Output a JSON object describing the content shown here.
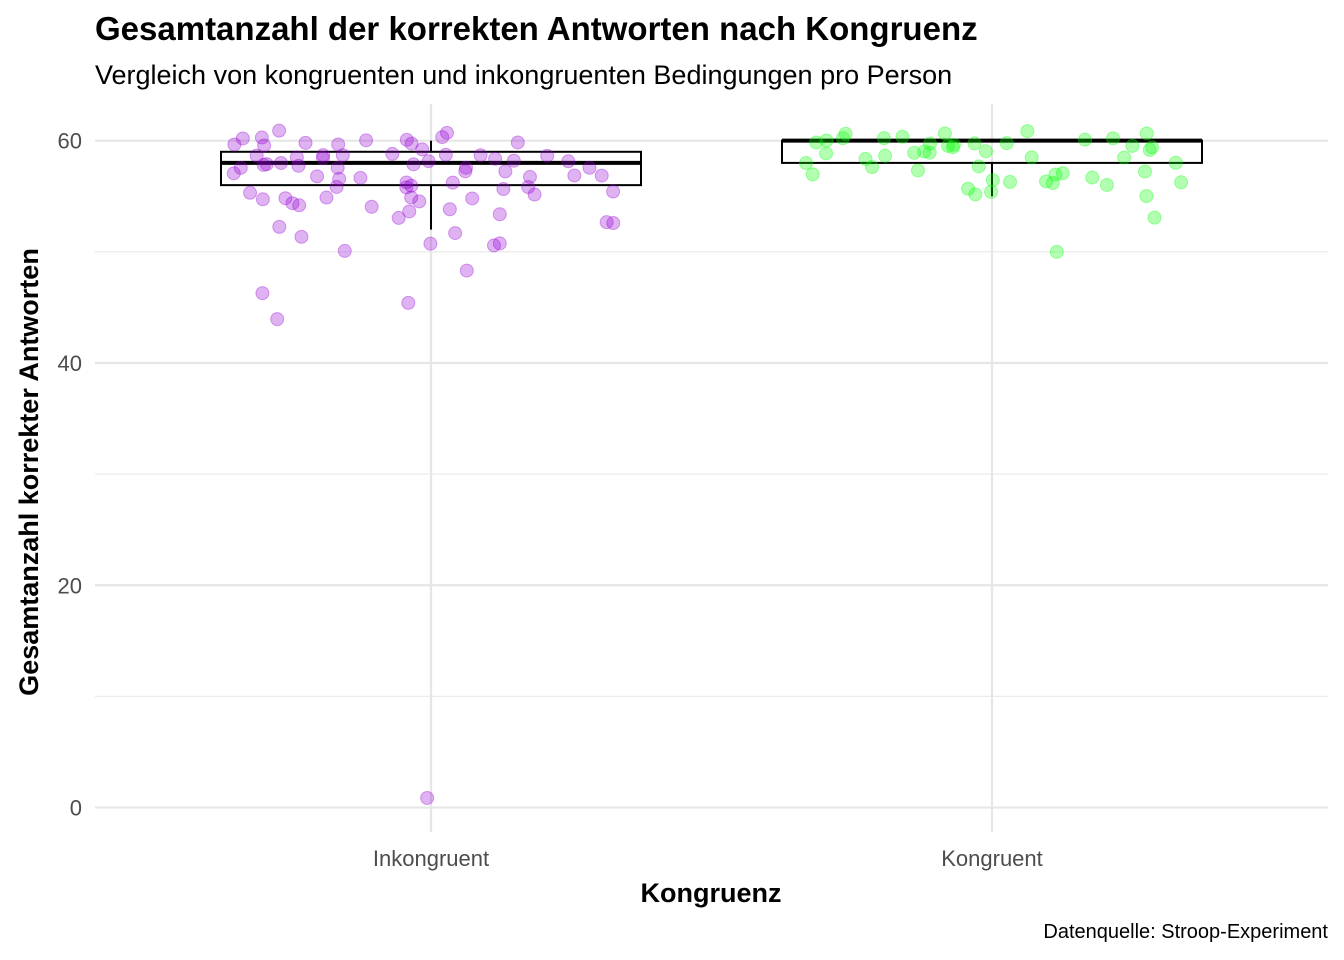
{
  "chart_data": {
    "type": "box+jitter",
    "title": "Gesamtanzahl der korrekten Antworten nach Kongruenz",
    "subtitle": "Vergleich von kongruenten und inkongruenten Bedingungen pro Person",
    "caption": "Datenquelle: Stroop-Experiment",
    "xlabel": "Kongruenz",
    "ylabel": "Gesamtanzahl korrekter Antworten",
    "categories": [
      "Inkongruent",
      "Kongruent"
    ],
    "ylim": [
      -2.2,
      63.3
    ],
    "yticks": [
      0,
      20,
      40,
      60
    ],
    "grid": true,
    "colors": {
      "Inkongruent": "#9400D3",
      "Kongruent": "#00FF00"
    },
    "boxes": [
      {
        "category": "Inkongruent",
        "q1": 56,
        "median": 58,
        "q3": 59,
        "whisker_low": 52,
        "whisker_high": 60
      },
      {
        "category": "Kongruent",
        "q1": 58,
        "median": 60,
        "q3": 60,
        "whisker_low": 55,
        "whisker_high": 60
      }
    ],
    "points": [
      {
        "category": "Inkongruent",
        "values": [
          0.8,
          44.2,
          45.4,
          45.9,
          48.4,
          49.8,
          51.0,
          51.0,
          51.1,
          51.7,
          51.8,
          52.2,
          52.3,
          52.9,
          53.0,
          53.6,
          53.7,
          53.9,
          54.0,
          54.1,
          54.2,
          54.3,
          54.5,
          54.8,
          54.9,
          55.0,
          55.1,
          55.3,
          55.4,
          55.5,
          55.6,
          55.8,
          55.9,
          56.0,
          56.1,
          56.2,
          56.3,
          56.4,
          56.5,
          56.6,
          56.7,
          56.8,
          56.9,
          57.0,
          57.1,
          57.2,
          57.3,
          57.4,
          57.5,
          57.6,
          57.7,
          57.8,
          57.9,
          58.0,
          58.0,
          58.1,
          58.2,
          58.3,
          58.4,
          58.5,
          58.6,
          58.7,
          58.8,
          58.9,
          59.0,
          59.0,
          59.1,
          59.2,
          59.3,
          59.4,
          59.5,
          59.6,
          59.7,
          59.8,
          59.9,
          60.0,
          60.0,
          60.1,
          60.2,
          60.3,
          60.4,
          60.5
        ]
      },
      {
        "category": "Kongruent",
        "values": [
          50.0,
          52.9,
          54.7,
          55.1,
          55.2,
          55.6,
          55.8,
          56.0,
          56.1,
          56.2,
          56.3,
          56.4,
          56.5,
          57.0,
          57.1,
          57.2,
          57.3,
          57.4,
          57.6,
          57.8,
          58.0,
          58.1,
          58.2,
          58.4,
          58.5,
          58.6,
          58.8,
          59.0,
          59.1,
          59.2,
          59.3,
          59.4,
          59.5,
          59.6,
          59.7,
          59.8,
          59.9,
          60.0,
          60.0,
          60.0,
          60.0,
          60.0,
          60.1,
          60.1,
          60.2,
          60.2,
          60.3,
          60.3,
          60.4,
          60.4,
          60.5
        ]
      }
    ]
  }
}
